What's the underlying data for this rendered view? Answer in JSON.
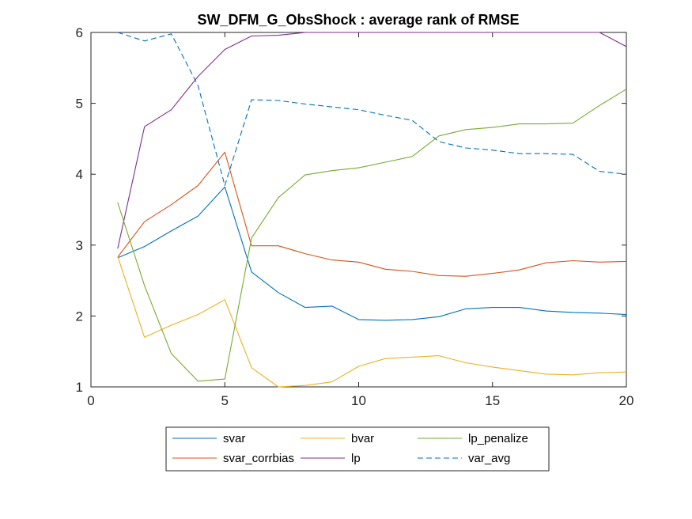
{
  "chart_data": {
    "type": "line",
    "title": "SW_DFM_G_ObsShock : average rank of RMSE",
    "xlabel": "",
    "ylabel": "",
    "xlim": [
      0,
      20
    ],
    "ylim": [
      1,
      6
    ],
    "xticks": [
      0,
      5,
      10,
      15,
      20
    ],
    "yticks": [
      1,
      2,
      3,
      4,
      5,
      6
    ],
    "grid": false,
    "legend_placement": "bottom-outside",
    "x": [
      1,
      2,
      3,
      4,
      5,
      6,
      7,
      8,
      9,
      10,
      11,
      12,
      13,
      14,
      15,
      16,
      17,
      18,
      19,
      20
    ],
    "series": [
      {
        "name": "svar",
        "color": "#0072BD",
        "dash": "solid",
        "values": [
          2.82,
          2.98,
          3.2,
          3.41,
          3.82,
          2.62,
          2.33,
          2.12,
          2.14,
          1.95,
          1.94,
          1.95,
          1.99,
          2.1,
          2.12,
          2.12,
          2.07,
          2.05,
          2.04,
          2.02
        ]
      },
      {
        "name": "svar_corrbias",
        "color": "#D95319",
        "dash": "solid",
        "values": [
          2.83,
          3.33,
          3.57,
          3.84,
          4.31,
          2.99,
          2.99,
          2.88,
          2.79,
          2.76,
          2.66,
          2.63,
          2.57,
          2.56,
          2.6,
          2.65,
          2.75,
          2.78,
          2.76,
          2.77
        ]
      },
      {
        "name": "bvar",
        "color": "#EDB120",
        "dash": "solid",
        "values": [
          2.84,
          1.7,
          1.87,
          2.02,
          2.23,
          1.27,
          1.0,
          1.02,
          1.07,
          1.29,
          1.4,
          1.42,
          1.44,
          1.34,
          1.28,
          1.23,
          1.18,
          1.17,
          1.2,
          1.21
        ]
      },
      {
        "name": "lp",
        "color": "#7E2F8E",
        "dash": "solid",
        "values": [
          2.95,
          4.67,
          4.91,
          5.38,
          5.76,
          5.95,
          5.96,
          6.0,
          6.0,
          6.0,
          6.0,
          6.0,
          6.0,
          6.0,
          6.0,
          6.0,
          6.0,
          6.0,
          6.0,
          5.8
        ]
      },
      {
        "name": "lp_penalize",
        "color": "#77AC30",
        "dash": "solid",
        "values": [
          3.6,
          2.43,
          1.47,
          1.08,
          1.11,
          3.1,
          3.67,
          3.99,
          4.05,
          4.09,
          4.17,
          4.25,
          4.54,
          4.63,
          4.66,
          4.71,
          4.71,
          4.72,
          4.97,
          5.2
        ]
      },
      {
        "name": "var_avg",
        "color": "#0072BD",
        "dash": "dashed",
        "values": [
          6.0,
          5.88,
          5.98,
          5.25,
          3.84,
          5.05,
          5.04,
          4.99,
          4.95,
          4.91,
          4.83,
          4.76,
          4.46,
          4.37,
          4.34,
          4.29,
          4.29,
          4.28,
          4.04,
          4.0
        ]
      }
    ],
    "legend_order": [
      "svar",
      "bvar",
      "lp_penalize",
      "svar_corrbias",
      "lp",
      "var_avg"
    ]
  }
}
